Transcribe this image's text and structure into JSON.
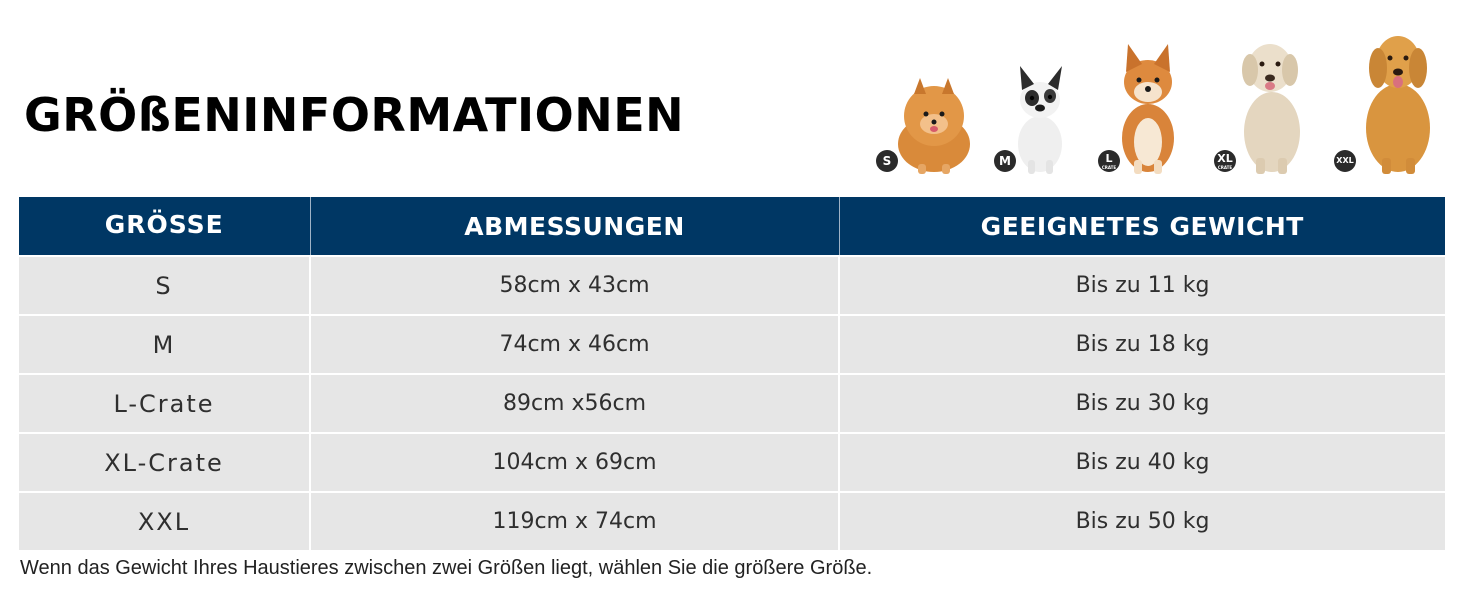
{
  "title": "GRÖßENINFORMATIONEN",
  "dogs": [
    {
      "badge": "S",
      "sub": "",
      "breed_icon": "pomeranian-dog-icon"
    },
    {
      "badge": "M",
      "sub": "",
      "breed_icon": "french-bulldog-icon"
    },
    {
      "badge": "L",
      "sub": "CRATE",
      "breed_icon": "shiba-inu-dog-icon"
    },
    {
      "badge": "XL",
      "sub": "CRATE",
      "breed_icon": "labrador-dog-icon"
    },
    {
      "badge": "XXL",
      "sub": "",
      "breed_icon": "golden-retriever-dog-icon"
    }
  ],
  "table": {
    "headers": [
      "GRÖSSE",
      "ABMESSUNGEN",
      "GEEIGNETES GEWICHT"
    ],
    "rows": [
      [
        "S",
        "58cm x 43cm",
        "Bis zu 11 kg"
      ],
      [
        "M",
        "74cm x 46cm",
        "Bis zu 18 kg"
      ],
      [
        "L-Crate",
        "89cm x56cm",
        "Bis zu 30 kg"
      ],
      [
        "XL-Crate",
        "104cm x 69cm",
        "Bis zu 40 kg"
      ],
      [
        "XXL",
        "119cm x 74cm",
        "Bis zu 50 kg"
      ]
    ]
  },
  "footnote": "Wenn das Gewicht Ihres Haustieres zwischen zwei Größen liegt, wählen Sie die größere Größe.",
  "colors": {
    "header_bg": "#003764",
    "row_bg": "#e6e6e6",
    "badge_bg": "#2b2b2b"
  }
}
